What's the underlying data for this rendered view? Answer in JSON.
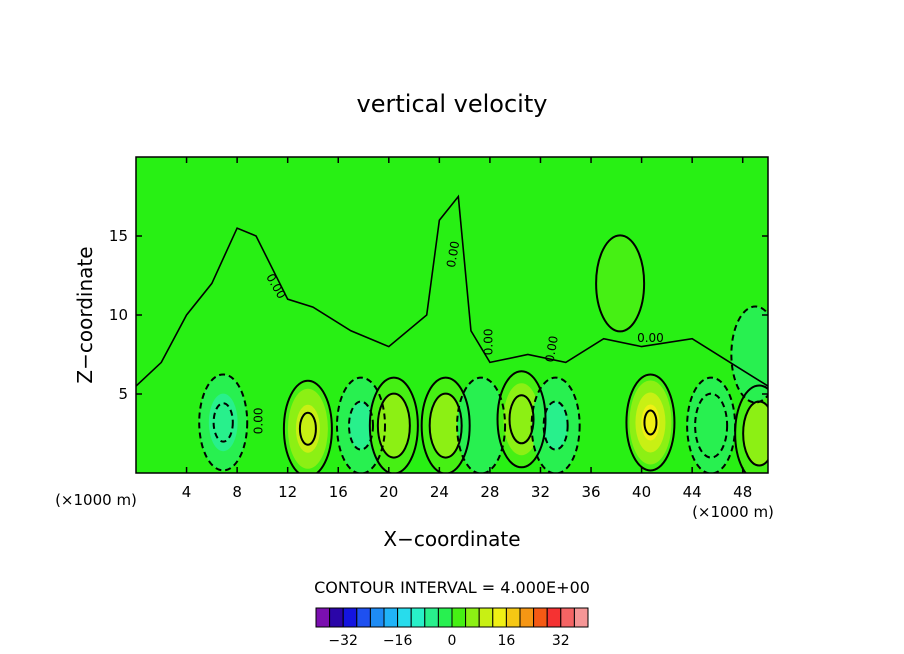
{
  "chart_data": {
    "type": "contour",
    "title": "vertical velocity",
    "xlabel": "X−coordinate",
    "ylabel": "Z−coordinate",
    "x_unit_left": "(×1000 m)",
    "x_unit_right": "(×1000 m)",
    "xlim": [
      0,
      50
    ],
    "ylim": [
      0,
      20
    ],
    "x_ticks": [
      4,
      8,
      12,
      16,
      20,
      24,
      28,
      32,
      36,
      40,
      44,
      48
    ],
    "y_ticks": [
      5,
      10,
      15
    ],
    "contour_interval_text": "CONTOUR INTERVAL = 4.000E+00",
    "contour_labels": [
      "0.00",
      "0.00",
      "0.00",
      "0.00",
      "0.00",
      "0.00",
      "0.00"
    ],
    "colorbar": {
      "colors": [
        "#7b0fb0",
        "#2a05a8",
        "#1414e0",
        "#1e50f0",
        "#1e8cf5",
        "#20b4f8",
        "#28dcec",
        "#28f0c8",
        "#28f08c",
        "#28f050",
        "#46f014",
        "#8cf014",
        "#c8f014",
        "#f0f014",
        "#f5c814",
        "#f59614",
        "#f55a14",
        "#f53232",
        "#f56464",
        "#f59696"
      ],
      "tick_labels": [
        "−32",
        "−16",
        "0",
        "16",
        "32"
      ],
      "tick_values": [
        -32,
        -16,
        0,
        16,
        32
      ]
    },
    "field": {
      "background": 0,
      "features": [
        {
          "x": 6.9,
          "z": 3.2,
          "value": -8
        },
        {
          "x": 13.6,
          "z": 2.8,
          "value": 10
        },
        {
          "x": 17.8,
          "z": 3.0,
          "value": -6
        },
        {
          "x": 20.4,
          "z": 3.0,
          "value": 4
        },
        {
          "x": 24.5,
          "z": 3.0,
          "value": 4
        },
        {
          "x": 27.3,
          "z": 3.0,
          "value": -2
        },
        {
          "x": 30.5,
          "z": 3.4,
          "value": 6
        },
        {
          "x": 33.2,
          "z": 3.0,
          "value": -6
        },
        {
          "x": 40.7,
          "z": 3.2,
          "value": 14
        },
        {
          "x": 45.5,
          "z": 3.0,
          "value": -4
        },
        {
          "x": 49.3,
          "z": 2.5,
          "value": 3
        },
        {
          "x": 49.0,
          "z": 7.5,
          "value": -2
        },
        {
          "x": 38.3,
          "z": 12.0,
          "value": 2
        }
      ]
    }
  }
}
